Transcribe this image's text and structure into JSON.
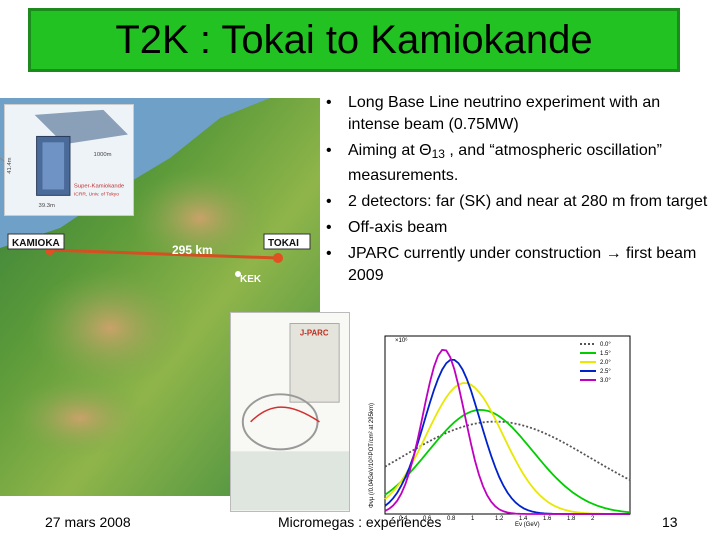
{
  "slide": {
    "title": "T2K : Tokai to Kamiokande",
    "bullets": [
      {
        "text": "Long Base Line neutrino experiment with an intense beam (0.75MW)"
      },
      {
        "pre": "Aiming at Θ",
        "sub": "13",
        "post": " , and “atmospheric oscillation” measurements."
      },
      {
        "text": "2 detectors: far (SK) and near at 280 m from target"
      },
      {
        "text": "Off-axis beam"
      },
      {
        "text": "JPARC currently under construction → first beam 2009"
      }
    ],
    "map": {
      "kamioka": "KAMIOKA",
      "tokai": "TOKAI",
      "distance": "295 km",
      "kek": "KEK",
      "sk_label_1": "Super-Kamiokande",
      "sk_label_2": "ICRR, Univ. of Tokyo",
      "depth": "1000m",
      "height": "41.4m",
      "width": "39.3m"
    },
    "jparc_label": "J-PARC",
    "plot": {
      "x_label": "Eν (GeV)",
      "y_label": "Φνμ (/0.04GeV/10²¹POT/cm² at 295km)",
      "y_exp": "×10⁶",
      "x_ticks": [
        "0.4",
        "0.6",
        "0.8",
        "1",
        "1.2",
        "1.4",
        "1.6",
        "1.8",
        "2"
      ],
      "legend": [
        "0.0°",
        "1.5°",
        "2.0°",
        "2.5°",
        "3.0°"
      ],
      "legend_colors": [
        "#555555",
        "#00cc00",
        "#e8e800",
        "#0022cc",
        "#c000c0"
      ]
    },
    "footer": {
      "date": "27 mars 2008",
      "center": "Micromegas : expériences",
      "page": "13"
    }
  }
}
